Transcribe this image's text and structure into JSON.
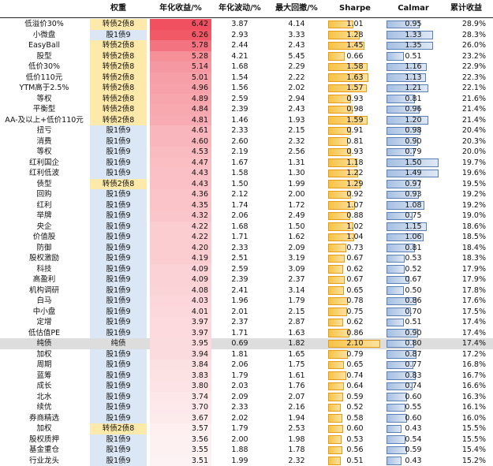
{
  "chart_data": {
    "type": "table",
    "headers": {
      "name": "",
      "weight": "权重",
      "annual_return": "年化收益/%",
      "annual_vol": "年化波动/%",
      "max_drawdown": "最大回撤/%",
      "sharpe": "Sharpe",
      "calmar": "Calmar",
      "cumulative": "累计收益"
    },
    "colors": {
      "weight_convertible_bg": "#fde9a9",
      "weight_stock_bg": "#dbe7f5",
      "return_high": "#ef3f4f",
      "return_low": "#ffffff",
      "sharpe_bar": "#f6c347",
      "sharpe_bar_border": "#e89b12",
      "calmar_bar": "#a6c0e2",
      "calmar_bar_border": "#5b7fb5",
      "highlight_row": "#dddddd"
    },
    "sharpe_max": 2.1,
    "calmar_max": 1.5,
    "rows": [
      {
        "name": "低溢价30%",
        "weight": "转债2债8",
        "weight_type": "convertible",
        "annual_return": "6.42",
        "annual_vol": "3.87",
        "max_drawdown": "4.14",
        "sharpe": "1.01",
        "calmar": "0.95",
        "cumulative": "28.9%"
      },
      {
        "name": "小微盘",
        "weight": "股1债9",
        "weight_type": "stock",
        "annual_return": "6.26",
        "annual_vol": "2.93",
        "max_drawdown": "3.33",
        "sharpe": "1.28",
        "calmar": "1.33",
        "cumulative": "28.3%"
      },
      {
        "name": "EasyBall",
        "weight": "转债2债8",
        "weight_type": "convertible",
        "annual_return": "5.78",
        "annual_vol": "2.44",
        "max_drawdown": "2.43",
        "sharpe": "1.45",
        "calmar": "1.35",
        "cumulative": "26.0%"
      },
      {
        "name": "股型",
        "weight": "转债2债8",
        "weight_type": "convertible",
        "annual_return": "5.28",
        "annual_vol": "4.21",
        "max_drawdown": "5.45",
        "sharpe": "0.66",
        "calmar": "0.51",
        "cumulative": "23.2%"
      },
      {
        "name": "低价30%",
        "weight": "转债2债8",
        "weight_type": "convertible",
        "annual_return": "5.14",
        "annual_vol": "1.68",
        "max_drawdown": "2.29",
        "sharpe": "1.58",
        "calmar": "1.16",
        "cumulative": "22.9%"
      },
      {
        "name": "低价110元",
        "weight": "转债2债8",
        "weight_type": "convertible",
        "annual_return": "5.01",
        "annual_vol": "1.54",
        "max_drawdown": "2.22",
        "sharpe": "1.63",
        "calmar": "1.13",
        "cumulative": "22.3%"
      },
      {
        "name": "YTM高于2.5%",
        "weight": "转债2债8",
        "weight_type": "convertible",
        "annual_return": "4.96",
        "annual_vol": "1.56",
        "max_drawdown": "2.02",
        "sharpe": "1.57",
        "calmar": "1.21",
        "cumulative": "22.1%"
      },
      {
        "name": "等权",
        "weight": "转债2债8",
        "weight_type": "convertible",
        "annual_return": "4.89",
        "annual_vol": "2.59",
        "max_drawdown": "2.94",
        "sharpe": "0.93",
        "calmar": "0.81",
        "cumulative": "21.6%"
      },
      {
        "name": "平衡型",
        "weight": "转债2债8",
        "weight_type": "convertible",
        "annual_return": "4.84",
        "annual_vol": "2.39",
        "max_drawdown": "2.43",
        "sharpe": "0.98",
        "calmar": "0.96",
        "cumulative": "21.4%"
      },
      {
        "name": "AA-及以上+低价110元",
        "weight": "转债2债8",
        "weight_type": "convertible",
        "annual_return": "4.81",
        "annual_vol": "1.46",
        "max_drawdown": "1.93",
        "sharpe": "1.59",
        "calmar": "1.20",
        "cumulative": "21.4%"
      },
      {
        "name": "扭亏",
        "weight": "股1债9",
        "weight_type": "stock",
        "annual_return": "4.61",
        "annual_vol": "2.33",
        "max_drawdown": "2.15",
        "sharpe": "0.91",
        "calmar": "0.98",
        "cumulative": "20.4%"
      },
      {
        "name": "消费",
        "weight": "股1债9",
        "weight_type": "stock",
        "annual_return": "4.60",
        "annual_vol": "2.60",
        "max_drawdown": "2.32",
        "sharpe": "0.81",
        "calmar": "0.90",
        "cumulative": "20.3%"
      },
      {
        "name": "等权",
        "weight": "股1债9",
        "weight_type": "stock",
        "annual_return": "4.53",
        "annual_vol": "2.19",
        "max_drawdown": "2.56",
        "sharpe": "0.93",
        "calmar": "0.79",
        "cumulative": "20.0%"
      },
      {
        "name": "红利国企",
        "weight": "股1债9",
        "weight_type": "stock",
        "annual_return": "4.47",
        "annual_vol": "1.67",
        "max_drawdown": "1.31",
        "sharpe": "1.18",
        "calmar": "1.50",
        "cumulative": "19.7%"
      },
      {
        "name": "红利低波",
        "weight": "股1债9",
        "weight_type": "stock",
        "annual_return": "4.43",
        "annual_vol": "1.58",
        "max_drawdown": "1.30",
        "sharpe": "1.22",
        "calmar": "1.49",
        "cumulative": "19.6%"
      },
      {
        "name": "债型",
        "weight": "转债2债8",
        "weight_type": "convertible",
        "annual_return": "4.43",
        "annual_vol": "1.50",
        "max_drawdown": "1.99",
        "sharpe": "1.29",
        "calmar": "0.97",
        "cumulative": "19.5%"
      },
      {
        "name": "回购",
        "weight": "股1债9",
        "weight_type": "stock",
        "annual_return": "4.36",
        "annual_vol": "2.12",
        "max_drawdown": "2.00",
        "sharpe": "0.92",
        "calmar": "0.93",
        "cumulative": "19.2%"
      },
      {
        "name": "红利",
        "weight": "股1债9",
        "weight_type": "stock",
        "annual_return": "4.35",
        "annual_vol": "1.74",
        "max_drawdown": "1.72",
        "sharpe": "1.07",
        "calmar": "1.08",
        "cumulative": "19.2%"
      },
      {
        "name": "举牌",
        "weight": "股1债9",
        "weight_type": "stock",
        "annual_return": "4.32",
        "annual_vol": "2.06",
        "max_drawdown": "2.49",
        "sharpe": "0.88",
        "calmar": "0.75",
        "cumulative": "19.0%"
      },
      {
        "name": "央企",
        "weight": "股1债9",
        "weight_type": "stock",
        "annual_return": "4.22",
        "annual_vol": "1.68",
        "max_drawdown": "1.50",
        "sharpe": "1.02",
        "calmar": "1.15",
        "cumulative": "18.6%"
      },
      {
        "name": "价值股",
        "weight": "股1债9",
        "weight_type": "stock",
        "annual_return": "4.22",
        "annual_vol": "1.71",
        "max_drawdown": "1.62",
        "sharpe": "1.04",
        "calmar": "1.06",
        "cumulative": "18.5%"
      },
      {
        "name": "防御",
        "weight": "股1债9",
        "weight_type": "stock",
        "annual_return": "4.20",
        "annual_vol": "2.33",
        "max_drawdown": "2.09",
        "sharpe": "0.73",
        "calmar": "0.81",
        "cumulative": "18.4%"
      },
      {
        "name": "股权激励",
        "weight": "股1债9",
        "weight_type": "stock",
        "annual_return": "4.19",
        "annual_vol": "2.51",
        "max_drawdown": "3.19",
        "sharpe": "0.67",
        "calmar": "0.53",
        "cumulative": "18.3%"
      },
      {
        "name": "科技",
        "weight": "股1债9",
        "weight_type": "stock",
        "annual_return": "4.09",
        "annual_vol": "2.59",
        "max_drawdown": "3.09",
        "sharpe": "0.62",
        "calmar": "0.52",
        "cumulative": "17.9%"
      },
      {
        "name": "高盈利",
        "weight": "股1债9",
        "weight_type": "stock",
        "annual_return": "4.09",
        "annual_vol": "2.39",
        "max_drawdown": "2.37",
        "sharpe": "0.67",
        "calmar": "0.67",
        "cumulative": "17.9%"
      },
      {
        "name": "机构调研",
        "weight": "股1债9",
        "weight_type": "stock",
        "annual_return": "4.08",
        "annual_vol": "2.41",
        "max_drawdown": "3.14",
        "sharpe": "0.65",
        "calmar": "0.50",
        "cumulative": "17.8%"
      },
      {
        "name": "白马",
        "weight": "股1债9",
        "weight_type": "stock",
        "annual_return": "4.03",
        "annual_vol": "1.96",
        "max_drawdown": "1.79",
        "sharpe": "0.78",
        "calmar": "0.86",
        "cumulative": "17.6%"
      },
      {
        "name": "中小盘",
        "weight": "股1债9",
        "weight_type": "stock",
        "annual_return": "4.01",
        "annual_vol": "2.01",
        "max_drawdown": "2.15",
        "sharpe": "0.75",
        "calmar": "0.70",
        "cumulative": "17.5%"
      },
      {
        "name": "定增",
        "weight": "股1债9",
        "weight_type": "stock",
        "annual_return": "3.97",
        "annual_vol": "2.37",
        "max_drawdown": "2.87",
        "sharpe": "0.62",
        "calmar": "0.51",
        "cumulative": "17.4%"
      },
      {
        "name": "低估值PE",
        "weight": "股1债9",
        "weight_type": "stock",
        "annual_return": "3.97",
        "annual_vol": "1.71",
        "max_drawdown": "1.63",
        "sharpe": "0.86",
        "calmar": "0.90",
        "cumulative": "17.4%"
      },
      {
        "name": "纯债",
        "weight": "纯债",
        "weight_type": "pure",
        "annual_return": "3.95",
        "annual_vol": "0.69",
        "max_drawdown": "1.82",
        "sharpe": "2.10",
        "calmar": "0.80",
        "cumulative": "17.4%",
        "highlight": true
      },
      {
        "name": "加权",
        "weight": "股1债9",
        "weight_type": "stock",
        "annual_return": "3.94",
        "annual_vol": "1.81",
        "max_drawdown": "1.65",
        "sharpe": "0.79",
        "calmar": "0.87",
        "cumulative": "17.2%"
      },
      {
        "name": "周期",
        "weight": "股1债9",
        "weight_type": "stock",
        "annual_return": "3.84",
        "annual_vol": "2.06",
        "max_drawdown": "1.75",
        "sharpe": "0.65",
        "calmar": "0.77",
        "cumulative": "16.8%"
      },
      {
        "name": "蓝筹",
        "weight": "股1债9",
        "weight_type": "stock",
        "annual_return": "3.83",
        "annual_vol": "1.79",
        "max_drawdown": "1.61",
        "sharpe": "0.74",
        "calmar": "0.83",
        "cumulative": "16.7%"
      },
      {
        "name": "成长",
        "weight": "股1债9",
        "weight_type": "stock",
        "annual_return": "3.80",
        "annual_vol": "2.03",
        "max_drawdown": "1.76",
        "sharpe": "0.64",
        "calmar": "0.74",
        "cumulative": "16.6%"
      },
      {
        "name": "北水",
        "weight": "股1债9",
        "weight_type": "stock",
        "annual_return": "3.74",
        "annual_vol": "2.09",
        "max_drawdown": "2.07",
        "sharpe": "0.59",
        "calmar": "0.60",
        "cumulative": "16.3%"
      },
      {
        "name": "续优",
        "weight": "股1债9",
        "weight_type": "stock",
        "annual_return": "3.70",
        "annual_vol": "2.33",
        "max_drawdown": "2.16",
        "sharpe": "0.52",
        "calmar": "0.55",
        "cumulative": "16.1%"
      },
      {
        "name": "券商精选",
        "weight": "股1债9",
        "weight_type": "stock",
        "annual_return": "3.67",
        "annual_vol": "2.02",
        "max_drawdown": "1.94",
        "sharpe": "0.58",
        "calmar": "0.60",
        "cumulative": "16.0%"
      },
      {
        "name": "加权",
        "weight": "转债2债8",
        "weight_type": "convertible",
        "annual_return": "3.57",
        "annual_vol": "1.79",
        "max_drawdown": "2.53",
        "sharpe": "0.60",
        "calmar": "0.43",
        "cumulative": "15.5%"
      },
      {
        "name": "股权质押",
        "weight": "股1债9",
        "weight_type": "stock",
        "annual_return": "3.56",
        "annual_vol": "2.00",
        "max_drawdown": "1.98",
        "sharpe": "0.53",
        "calmar": "0.54",
        "cumulative": "15.5%"
      },
      {
        "name": "基金重仓",
        "weight": "股1债9",
        "weight_type": "stock",
        "annual_return": "3.55",
        "annual_vol": "1.88",
        "max_drawdown": "1.78",
        "sharpe": "0.56",
        "calmar": "0.59",
        "cumulative": "15.4%"
      },
      {
        "name": "行业龙头",
        "weight": "股1债9",
        "weight_type": "stock",
        "annual_return": "3.51",
        "annual_vol": "1.99",
        "max_drawdown": "2.32",
        "sharpe": "0.51",
        "calmar": "0.43",
        "cumulative": "15.2%"
      }
    ]
  }
}
